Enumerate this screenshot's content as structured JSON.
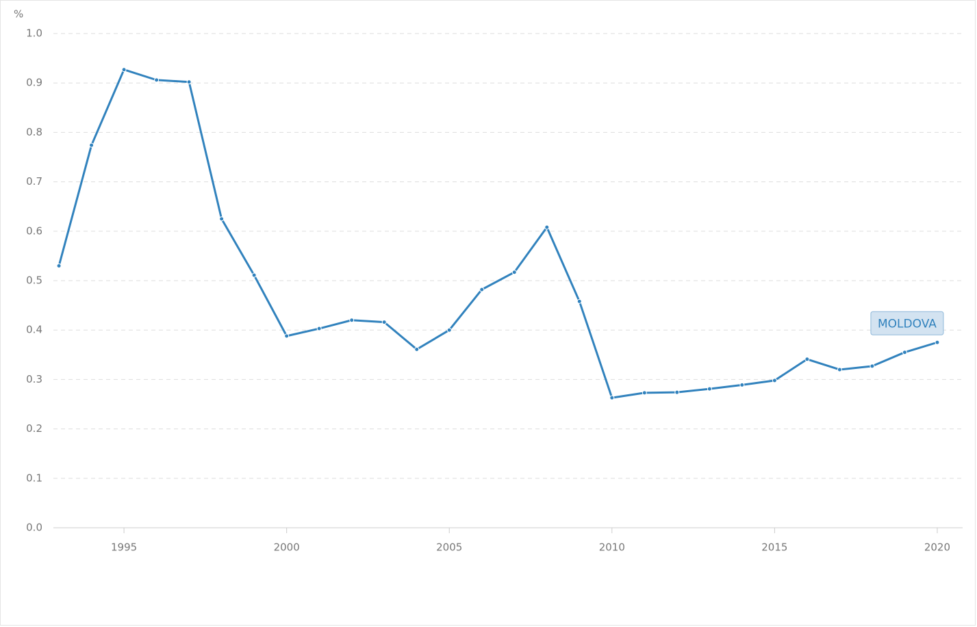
{
  "chart_data": {
    "type": "line",
    "y_unit": "%",
    "x": [
      1993,
      1994,
      1995,
      1996,
      1997,
      1998,
      1999,
      2000,
      2001,
      2002,
      2003,
      2004,
      2005,
      2006,
      2007,
      2008,
      2009,
      2010,
      2011,
      2012,
      2013,
      2014,
      2015,
      2016,
      2017,
      2018,
      2019,
      2020
    ],
    "series": [
      {
        "name": "MOLDOVA",
        "color": "#3182bd",
        "values": [
          0.53,
          0.774,
          0.927,
          0.906,
          0.902,
          0.625,
          0.511,
          0.388,
          0.403,
          0.42,
          0.416,
          0.361,
          0.4,
          0.482,
          0.517,
          0.608,
          0.458,
          0.263,
          0.273,
          0.274,
          0.281,
          0.289,
          0.298,
          0.341,
          0.32,
          0.327,
          0.355,
          0.375
        ]
      }
    ],
    "xlim": [
      1992.83,
      2020.78
    ],
    "xticks": [
      1995,
      2000,
      2005,
      2010,
      2015,
      2020
    ],
    "ylim": [
      0,
      1
    ],
    "yticks": [
      {
        "value": 0,
        "label": "0.0"
      },
      0.1,
      0.2,
      0.3,
      0.4,
      0.5,
      0.6,
      0.7,
      0.8,
      0.9,
      {
        "value": 1,
        "label": "1.0"
      }
    ],
    "grid": true
  }
}
